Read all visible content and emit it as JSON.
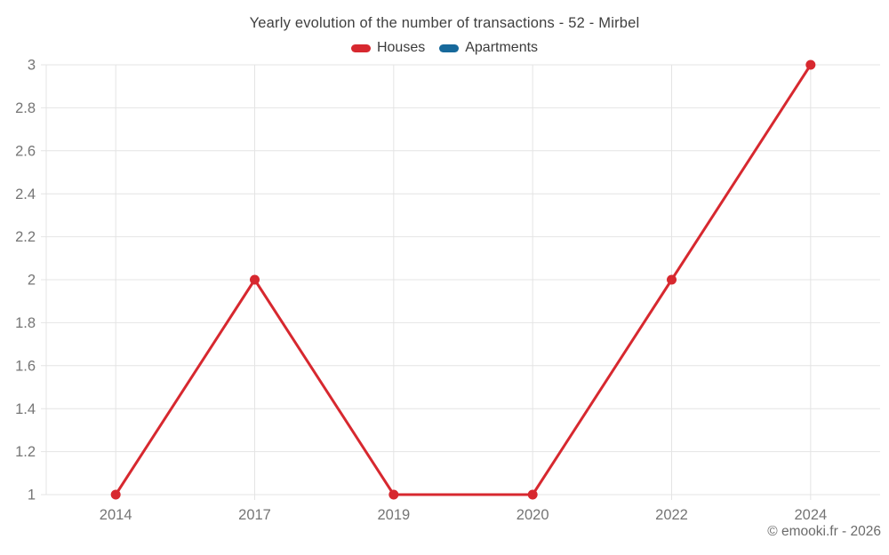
{
  "title": "Yearly evolution of the number of transactions - 52 - Mirbel",
  "footer": "© emooki.fr - 2026",
  "legend": [
    {
      "label": "Houses",
      "color": "#d7282f"
    },
    {
      "label": "Apartments",
      "color": "#17699b"
    }
  ],
  "colors": {
    "houses_series": "#d7282f",
    "apartments_series": "#17699b",
    "gridline": "#e4e4e4",
    "axis_label": "#757575",
    "title_text": "#3f3f3f",
    "footer_text": "#6b6b6b",
    "background": "#ffffff"
  },
  "chart_data": {
    "type": "line",
    "title": "Yearly evolution of the number of transactions - 52 - Mirbel",
    "categories": [
      "2014",
      "2017",
      "2019",
      "2020",
      "2022",
      "2024"
    ],
    "series": [
      {
        "name": "Houses",
        "color": "#d7282f",
        "values": [
          1,
          2,
          1,
          1,
          2,
          3
        ]
      },
      {
        "name": "Apartments",
        "color": "#17699b",
        "values": []
      }
    ],
    "xlabel": "",
    "ylabel": "",
    "ylim": [
      1,
      3
    ],
    "ytick_step": 0.2,
    "ytick_labels": [
      "1",
      "1.2",
      "1.4",
      "1.6",
      "1.8",
      "2",
      "2.2",
      "2.4",
      "2.6",
      "2.8",
      "3"
    ],
    "grid": true,
    "legend_position": "top",
    "marker": "circle"
  }
}
